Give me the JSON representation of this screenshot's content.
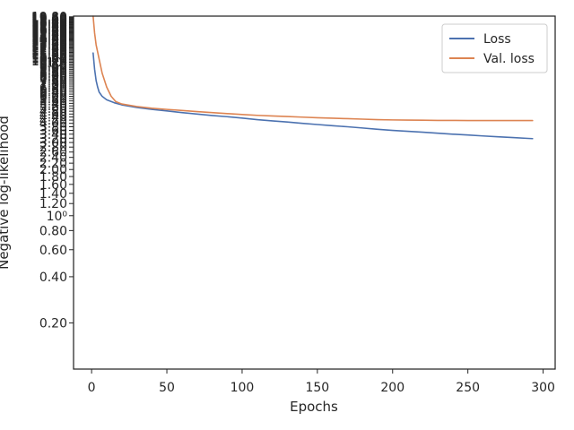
{
  "chart_data": {
    "type": "line",
    "xlabel": "Epochs",
    "ylabel": "Negative log-likelihood",
    "xlim": [
      -12,
      308
    ],
    "ylim": [
      0.1,
      20.0
    ],
    "yscale": "log",
    "xticks": [
      0,
      50,
      100,
      150,
      200,
      250,
      300
    ],
    "yticks": [
      0.2,
      0.4,
      0.6,
      0.8,
      1.0,
      1.2,
      1.4,
      1.6,
      1.8,
      2.0,
      2.2,
      2.4,
      2.6,
      2.8,
      3.0,
      3.2,
      3.4,
      3.6,
      3.8,
      4.0,
      4.2,
      4.4,
      4.6,
      4.8,
      5.0,
      5.2,
      5.4,
      5.6,
      5.8,
      6.0,
      6.2,
      6.4,
      6.6,
      6.8,
      7.0,
      7.2,
      7.4,
      7.6,
      7.8,
      8.0,
      8.2,
      8.4,
      8.6,
      8.8,
      9.0,
      9.2,
      9.4,
      9.6,
      9.8,
      10.0,
      10.2,
      10.4,
      10.6,
      10.8,
      11.0,
      11.2,
      11.4,
      11.6,
      11.8,
      12.0,
      12.2,
      12.4,
      12.6,
      12.8,
      13.0,
      13.2,
      13.4,
      13.6,
      13.8,
      14.0,
      14.2,
      14.4,
      14.6,
      14.8,
      15.0,
      15.2,
      15.4,
      15.6,
      15.8,
      16.0,
      16.2,
      16.4,
      16.6,
      16.8,
      17.0,
      17.2,
      17.4,
      17.6,
      17.8,
      18.0,
      18.2,
      18.4,
      18.6,
      18.8,
      19.0,
      19.2,
      19.4,
      19.6,
      19.8
    ],
    "ytick_labels": [
      "0.20",
      "0.40",
      "0.60",
      "0.80",
      "10⁰",
      "1.20",
      "1.40",
      "1.60",
      "1.80",
      "2.00",
      "2.20",
      "2.40",
      "2.60",
      "2.80",
      "3.00",
      "3.20",
      "3.40",
      "3.60",
      "3.80",
      "4.00",
      "4.20",
      "4.40",
      "4.60",
      "4.80",
      "5.00",
      "5.20",
      "5.40",
      "5.60",
      "5.80",
      "6.00",
      "6.20",
      "6.40",
      "6.60",
      "6.80",
      "7.00",
      "7.20",
      "7.40",
      "7.60",
      "7.80",
      "8.00",
      "8.20",
      "8.40",
      "8.60",
      "8.80",
      "9.00",
      "9.20",
      "9.40",
      "9.60",
      "9.80",
      "10¹",
      "10.20",
      "10.40",
      "10.60",
      "10.80",
      "11.00",
      "11.20",
      "11.40",
      "11.60",
      "11.80",
      "12.00",
      "12.20",
      "12.40",
      "12.60",
      "12.80",
      "13.00",
      "13.20",
      "13.40",
      "13.60",
      "13.80",
      "14.00",
      "14.20",
      "14.40",
      "14.60",
      "14.80",
      "15.00",
      "15.20",
      "15.40",
      "15.60",
      "15.80",
      "16.00",
      "16.20",
      "16.40",
      "16.60",
      "16.80",
      "17.00",
      "17.20",
      "17.40",
      "17.60",
      "17.80",
      "18.00",
      "18.20",
      "18.40",
      "18.60",
      "18.80",
      "19.00",
      "19.20",
      "19.40",
      "19.60",
      "19.80"
    ],
    "legend_position": "top-right",
    "series": [
      {
        "name": "Loss",
        "color": "#4c72b0",
        "x": [
          1,
          2,
          3,
          4,
          5,
          7,
          10,
          15,
          20,
          30,
          40,
          50,
          60,
          70,
          80,
          90,
          100,
          110,
          120,
          130,
          140,
          150,
          160,
          170,
          180,
          190,
          200,
          210,
          220,
          230,
          240,
          250,
          260,
          270,
          280,
          290,
          293
        ],
        "y": [
          11.5,
          9.0,
          7.6,
          6.9,
          6.4,
          6.0,
          5.7,
          5.45,
          5.28,
          5.08,
          4.93,
          4.82,
          4.7,
          4.6,
          4.5,
          4.42,
          4.33,
          4.23,
          4.15,
          4.08,
          4.0,
          3.93,
          3.86,
          3.8,
          3.73,
          3.66,
          3.6,
          3.55,
          3.5,
          3.45,
          3.4,
          3.36,
          3.31,
          3.27,
          3.23,
          3.19,
          3.18
        ]
      },
      {
        "name": "Val. loss",
        "color": "#dd8452",
        "x": [
          1,
          2,
          3,
          5,
          7,
          10,
          13,
          16,
          20,
          30,
          40,
          50,
          60,
          70,
          80,
          90,
          100,
          110,
          120,
          130,
          140,
          150,
          160,
          170,
          180,
          190,
          200,
          210,
          220,
          230,
          240,
          250,
          260,
          270,
          280,
          290,
          293
        ],
        "y": [
          20.0,
          15.5,
          13.0,
          10.5,
          8.5,
          6.9,
          6.0,
          5.55,
          5.35,
          5.15,
          5.02,
          4.93,
          4.85,
          4.77,
          4.7,
          4.63,
          4.57,
          4.51,
          4.47,
          4.43,
          4.39,
          4.35,
          4.32,
          4.29,
          4.26,
          4.23,
          4.21,
          4.2,
          4.19,
          4.18,
          4.18,
          4.17,
          4.17,
          4.17,
          4.17,
          4.17,
          4.17
        ]
      }
    ]
  }
}
